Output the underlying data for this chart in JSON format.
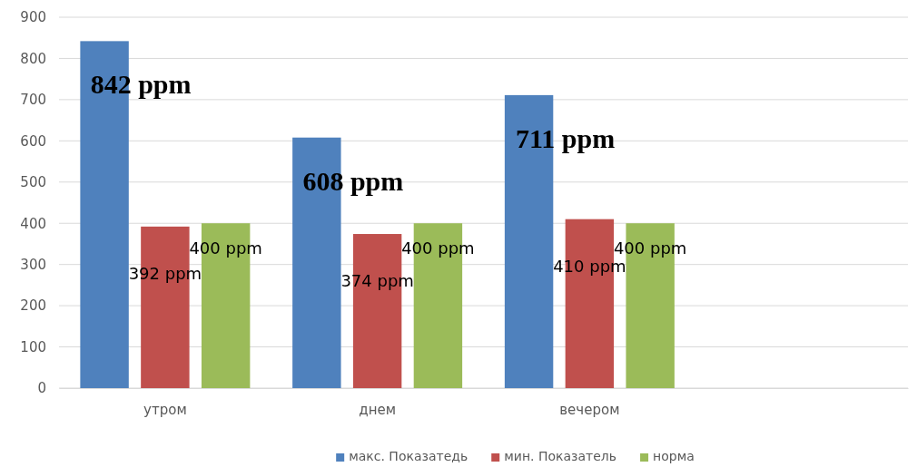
{
  "chart_data": {
    "type": "bar",
    "categories": [
      "утром",
      "днем",
      "вечером",
      null
    ],
    "series": [
      {
        "name": "макс. Показатедь",
        "color": "#4f81bd",
        "values": [
          842,
          608,
          711,
          null
        ],
        "value_labels": [
          "842 ppm",
          "608 ppm",
          "711 ppm",
          null
        ]
      },
      {
        "name": "мин. Показатель",
        "color": "#c0504d",
        "values": [
          392,
          374,
          410,
          null
        ],
        "value_labels": [
          "392 ppm",
          "374 ppm",
          "410 ppm",
          null
        ]
      },
      {
        "name": "норма",
        "color": "#9bbb59",
        "values": [
          400,
          400,
          400,
          null
        ],
        "value_labels": [
          "400 ppm",
          "400 ppm",
          "400 ppm",
          null
        ]
      }
    ],
    "ylim": [
      0,
      900
    ],
    "yticks": [
      0,
      100,
      200,
      300,
      400,
      500,
      600,
      700,
      800,
      900
    ],
    "grid": "y",
    "legend": "bottom"
  }
}
